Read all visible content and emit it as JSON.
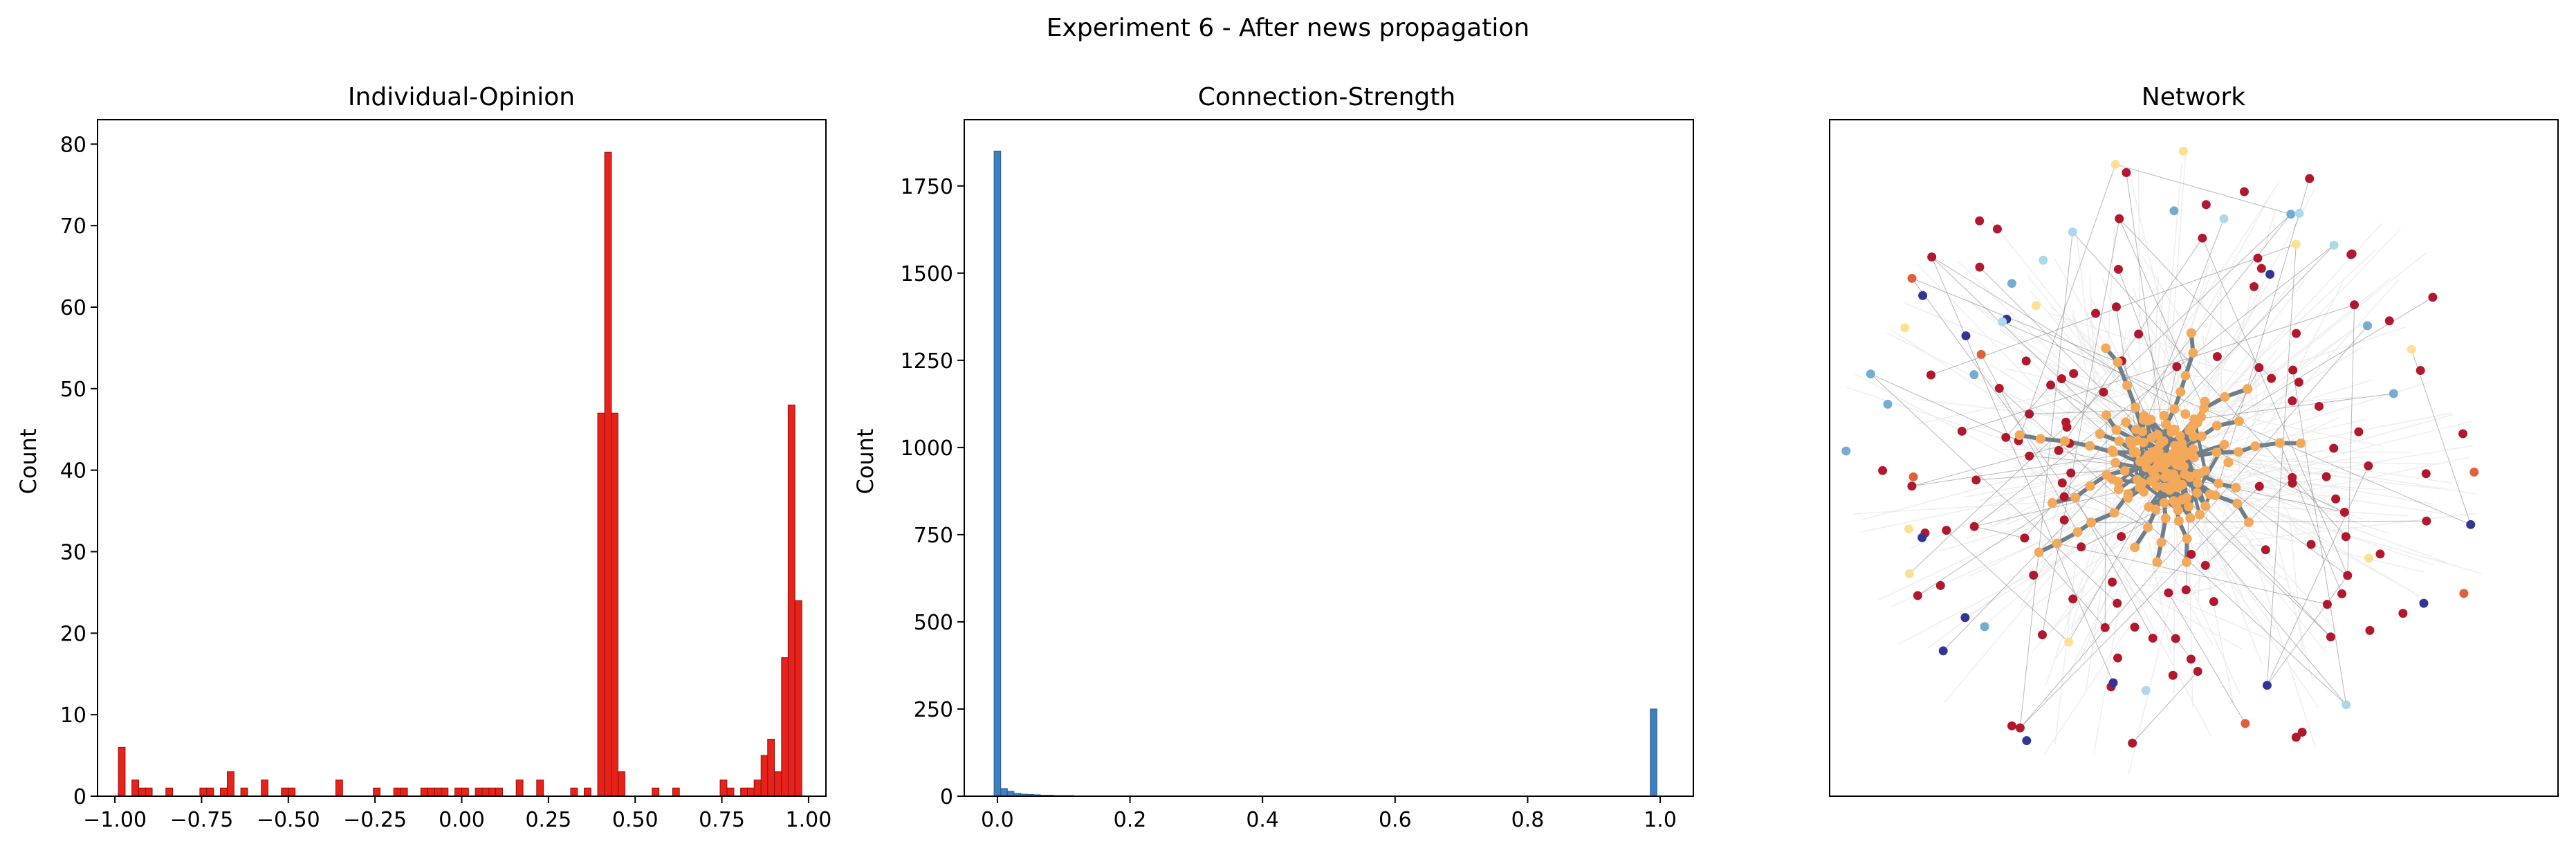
{
  "figure": {
    "suptitle": "Experiment 6 - After news propagation"
  },
  "colors": {
    "hist_red": "#e8221a",
    "hist_red_edge": "#8b1510",
    "hist_blue": "#3f7fbf",
    "hist_blue_edge": "#2a5a8a",
    "node_orange": "#f4a95a",
    "node_red": "#b2182b",
    "node_navy": "#313695",
    "node_lightblue": "#74add1",
    "node_yellow": "#fee090",
    "node_paleblue": "#abd9e9",
    "node_salmon": "#e0603a",
    "edge_grey": "#6e7f8a",
    "edge_light": "#ececec"
  },
  "chart_data": [
    {
      "type": "bar",
      "title": "Individual-Opinion",
      "xlabel": "",
      "ylabel": "Count",
      "xlim": [
        -1.05,
        1.05
      ],
      "ylim": [
        0,
        83
      ],
      "xticks": [
        -1.0,
        -0.75,
        -0.5,
        -0.25,
        0.0,
        0.25,
        0.5,
        0.75,
        1.0
      ],
      "xtick_labels": [
        "−1.00",
        "−0.75",
        "−0.50",
        "−0.25",
        "0.00",
        "0.25",
        "0.50",
        "0.75",
        "1.00"
      ],
      "yticks": [
        0,
        10,
        20,
        30,
        40,
        50,
        60,
        70,
        80
      ],
      "ytick_labels": [
        "0",
        "10",
        "20",
        "30",
        "40",
        "50",
        "60",
        "70",
        "80"
      ],
      "bin_width": 0.0196,
      "bins_left": [
        -0.99,
        -0.951,
        -0.931,
        -0.912,
        -0.853,
        -0.755,
        -0.735,
        -0.696,
        -0.676,
        -0.637,
        -0.578,
        -0.52,
        -0.5,
        -0.363,
        -0.255,
        -0.196,
        -0.176,
        -0.118,
        -0.098,
        -0.078,
        -0.059,
        -0.02,
        0.0,
        0.039,
        0.059,
        0.078,
        0.098,
        0.157,
        0.216,
        0.314,
        0.353,
        0.392,
        0.412,
        0.431,
        0.451,
        0.549,
        0.608,
        0.745,
        0.765,
        0.804,
        0.824,
        0.843,
        0.863,
        0.882,
        0.902,
        0.922,
        0.941,
        0.961
      ],
      "values": [
        6,
        2,
        1,
        1,
        1,
        1,
        1,
        1,
        3,
        1,
        2,
        1,
        1,
        2,
        1,
        1,
        1,
        1,
        1,
        1,
        1,
        1,
        1,
        1,
        1,
        1,
        1,
        2,
        2,
        1,
        1,
        47,
        79,
        47,
        3,
        1,
        1,
        2,
        1,
        1,
        1,
        2,
        5,
        7,
        3,
        17,
        48,
        24
      ]
    },
    {
      "type": "bar",
      "title": "Connection-Strength",
      "xlabel": "",
      "ylabel": "Count",
      "xlim": [
        -0.05,
        1.05
      ],
      "ylim": [
        0,
        1940
      ],
      "xticks": [
        0.0,
        0.2,
        0.4,
        0.6,
        0.8,
        1.0
      ],
      "xtick_labels": [
        "0.0",
        "0.2",
        "0.4",
        "0.6",
        "0.8",
        "1.0"
      ],
      "yticks": [
        0,
        250,
        500,
        750,
        1000,
        1250,
        1500,
        1750
      ],
      "ytick_labels": [
        "0",
        "250",
        "500",
        "750",
        "1000",
        "1250",
        "1500",
        "1750"
      ],
      "bin_width": 0.01,
      "bins_left": [
        -0.005,
        0.005,
        0.015,
        0.025,
        0.035,
        0.045,
        0.055,
        0.065,
        0.075,
        0.085,
        0.095,
        0.105,
        0.115,
        0.125,
        0.135,
        0.145,
        0.155,
        0.985
      ],
      "values": [
        1850,
        22,
        14,
        8,
        6,
        5,
        4,
        3,
        3,
        2,
        2,
        2,
        1,
        1,
        1,
        1,
        1,
        250
      ]
    },
    {
      "type": "scatter",
      "title": "Network"
    }
  ]
}
